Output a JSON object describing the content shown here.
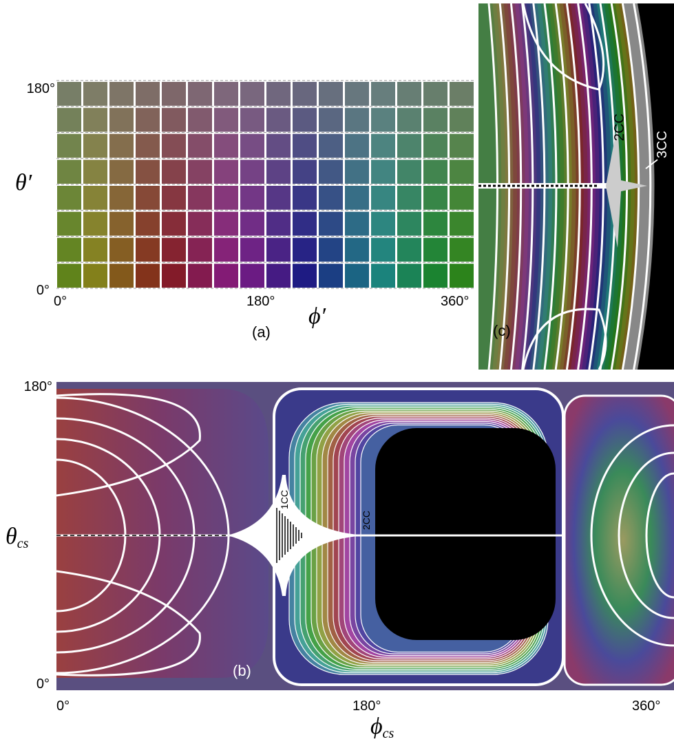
{
  "panel_a": {
    "theta_ticks": [
      "180°",
      "0°"
    ],
    "phi_ticks": [
      "0°",
      "180°",
      "360°"
    ],
    "y_label": "θ′",
    "x_label": "ϕ′",
    "caption": "(a)"
  },
  "panel_c": {
    "caption": "(c)",
    "labels": [
      "2CC",
      "3CC"
    ]
  },
  "panel_b": {
    "theta_ticks": [
      "180°",
      "0°"
    ],
    "phi_ticks": [
      "0°",
      "180°",
      "360°"
    ],
    "y_label": {
      "symbol": "θ",
      "subscript": "cs"
    },
    "x_label": {
      "symbol": "ϕ",
      "subscript": "cs"
    },
    "caption": "(b)",
    "labels": [
      "1CC",
      "2CC"
    ]
  }
}
